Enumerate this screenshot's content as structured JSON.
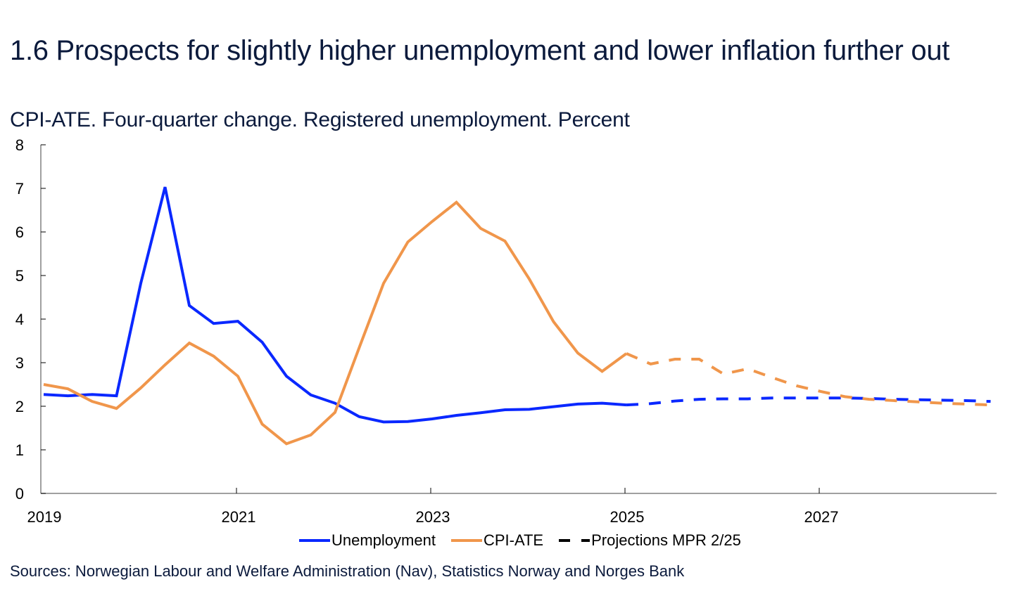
{
  "header": {
    "title": "1.6 Prospects for slightly higher unemployment and lower inflation further out",
    "subtitle": "CPI-ATE. Four-quarter change. Registered unemployment. Percent"
  },
  "legend": {
    "items": [
      {
        "label": "Unemployment",
        "color": "#0a28ff",
        "style": "solid"
      },
      {
        "label": "CPI-ATE",
        "color": "#f0964b",
        "style": "solid"
      },
      {
        "label": "Projections MPR 2/25",
        "color": "#000000",
        "style": "dashed"
      }
    ]
  },
  "footer": {
    "sources": "Sources: Norwegian  Labour and Welfare Administration (Nav), Statistics Norway and  Norges Bank"
  },
  "chart_data": {
    "type": "line",
    "title": "1.6 Prospects for slightly higher unemployment and lower inflation further out",
    "subtitle": "CPI-ATE. Four-quarter change. Registered unemployment. Percent",
    "xlabel": "",
    "ylabel": "",
    "ylim": [
      0,
      8
    ],
    "yticks": [
      0,
      1,
      2,
      3,
      4,
      5,
      6,
      7,
      8
    ],
    "xlim": [
      2019.0,
      2029.0
    ],
    "xticks": [
      2019,
      2021,
      2023,
      2025,
      2027
    ],
    "xtick_labels": [
      "2019",
      "2021",
      "2023",
      "2025",
      "2027"
    ],
    "grid": false,
    "legend_position": "bottom",
    "projection_start": "2025Q1",
    "x": [
      "2019Q1",
      "2019Q2",
      "2019Q3",
      "2019Q4",
      "2020Q1",
      "2020Q2",
      "2020Q3",
      "2020Q4",
      "2021Q1",
      "2021Q2",
      "2021Q3",
      "2021Q4",
      "2022Q1",
      "2022Q2",
      "2022Q3",
      "2022Q4",
      "2023Q1",
      "2023Q2",
      "2023Q3",
      "2023Q4",
      "2024Q1",
      "2024Q2",
      "2024Q3",
      "2024Q4",
      "2025Q1",
      "2025Q2",
      "2025Q3",
      "2025Q4",
      "2026Q1",
      "2026Q2",
      "2026Q3",
      "2026Q4",
      "2027Q1",
      "2027Q2",
      "2027Q3",
      "2027Q4",
      "2028Q1",
      "2028Q2",
      "2028Q3",
      "2028Q4"
    ],
    "series": [
      {
        "name": "Unemployment",
        "color": "#0a28ff",
        "values": [
          2.27,
          2.24,
          2.27,
          2.24,
          4.82,
          7.03,
          4.31,
          3.9,
          3.95,
          3.47,
          2.69,
          2.26,
          2.07,
          1.76,
          1.64,
          1.65,
          1.71,
          1.79,
          1.85,
          1.92,
          1.93,
          1.99,
          2.05,
          2.07,
          2.03,
          2.06,
          2.12,
          2.16,
          2.17,
          2.17,
          2.19,
          2.19,
          2.19,
          2.19,
          2.18,
          2.16,
          2.15,
          2.14,
          2.13,
          2.11
        ]
      },
      {
        "name": "CPI-ATE",
        "color": "#f0964b",
        "values": [
          2.5,
          2.4,
          2.11,
          1.95,
          2.42,
          2.95,
          3.45,
          3.15,
          2.69,
          1.59,
          1.14,
          1.34,
          1.86,
          3.35,
          4.82,
          5.77,
          6.24,
          6.68,
          6.08,
          5.79,
          4.92,
          3.94,
          3.22,
          2.8,
          3.21,
          2.97,
          3.08,
          3.08,
          2.74,
          2.86,
          2.66,
          2.47,
          2.34,
          2.22,
          2.16,
          2.13,
          2.1,
          2.07,
          2.05,
          2.03
        ]
      }
    ]
  }
}
